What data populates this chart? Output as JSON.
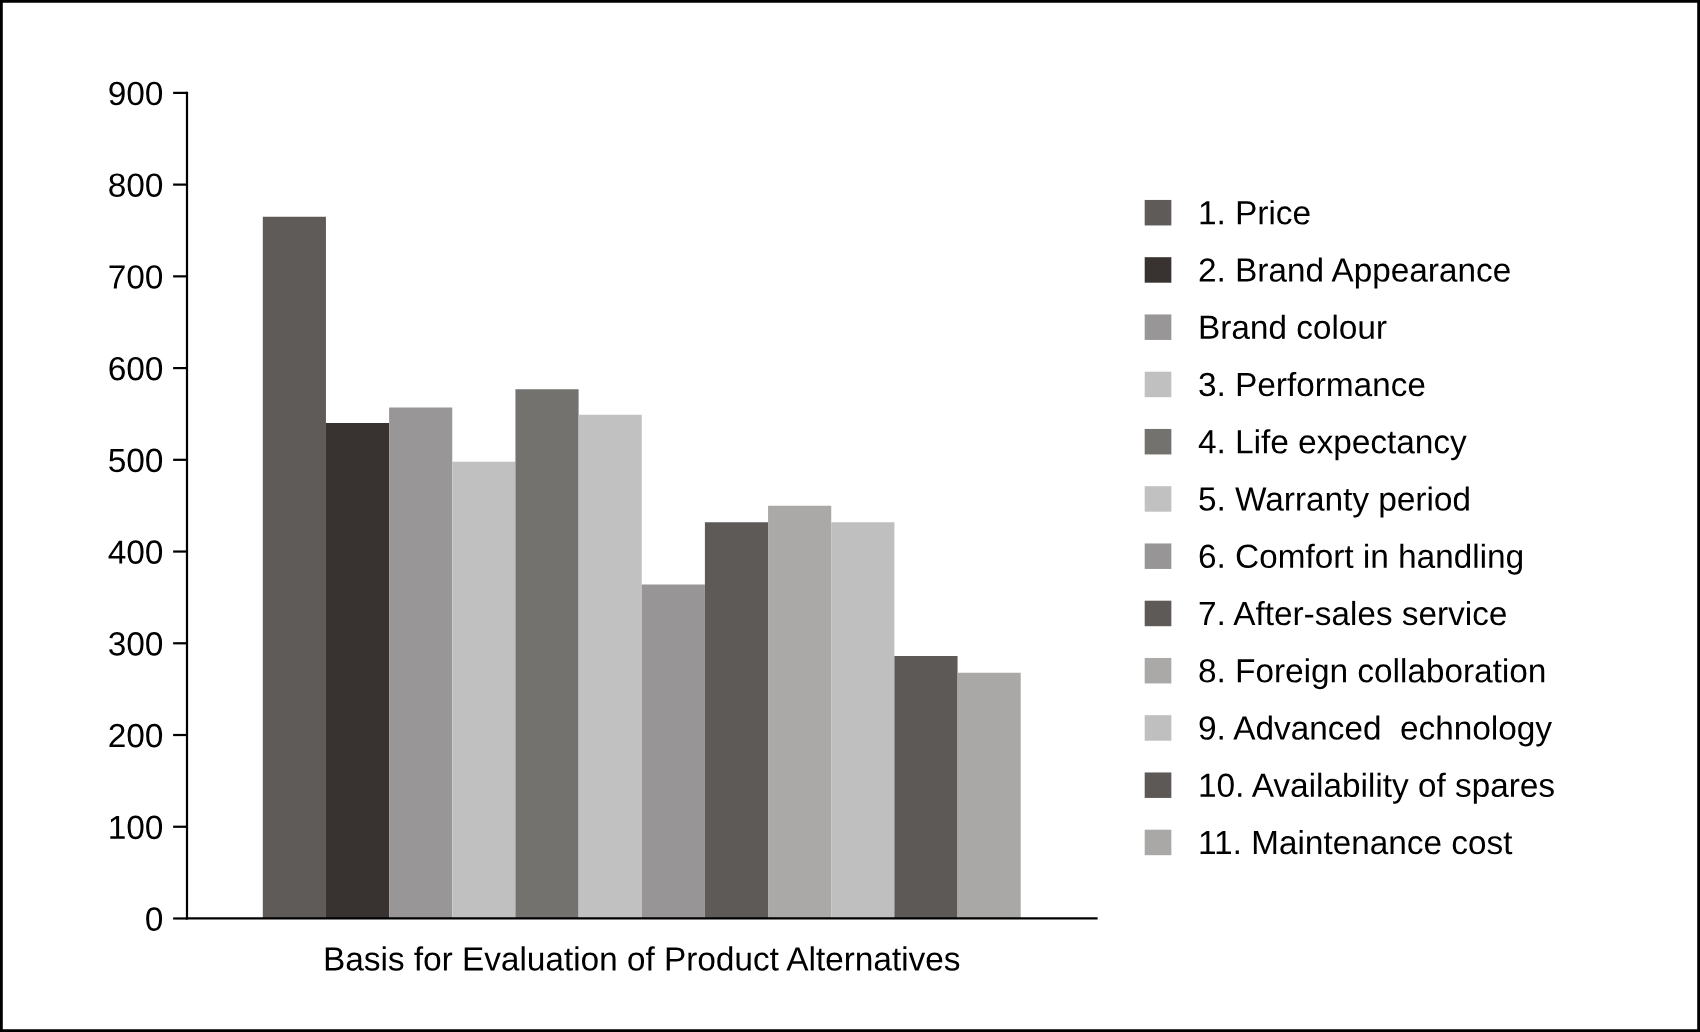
{
  "chart_data": {
    "type": "bar",
    "categories": [
      "Basis for Evaluation of Product Alternatives"
    ],
    "series": [
      {
        "name": "1. Price",
        "color": "#5f5b59",
        "values": [
          765
        ]
      },
      {
        "name": "2. Brand Appearance",
        "color": "#383330",
        "values": [
          540
        ]
      },
      {
        "name": "Brand colour",
        "color": "#989696",
        "values": [
          557
        ]
      },
      {
        "name": "3. Performance",
        "color": "#c0c0c0",
        "values": [
          498
        ]
      },
      {
        "name": "4. Life expectancy",
        "color": "#74726f",
        "values": [
          577
        ]
      },
      {
        "name": "5. Warranty period",
        "color": "#c1c1c1",
        "values": [
          549
        ]
      },
      {
        "name": "6. Comfort in handling",
        "color": "#979595",
        "values": [
          364
        ]
      },
      {
        "name": "7. After-sales service",
        "color": "#5e5a58",
        "values": [
          432
        ]
      },
      {
        "name": "8. Foreign collaboration",
        "color": "#aaa9a7",
        "values": [
          450
        ]
      },
      {
        "name": "9. Advanced  echnology",
        "color": "#bfbfbf",
        "values": [
          432
        ]
      },
      {
        "name": "10. Availability of spares",
        "color": "#5d5957",
        "values": [
          286
        ]
      },
      {
        "name": "11. Maintenance cost",
        "color": "#a9a8a6",
        "values": [
          268
        ]
      }
    ],
    "ylim": [
      0,
      900
    ],
    "yticks": [
      0,
      100,
      200,
      300,
      400,
      500,
      600,
      700,
      800,
      900
    ],
    "grid": false,
    "legend": "right"
  }
}
